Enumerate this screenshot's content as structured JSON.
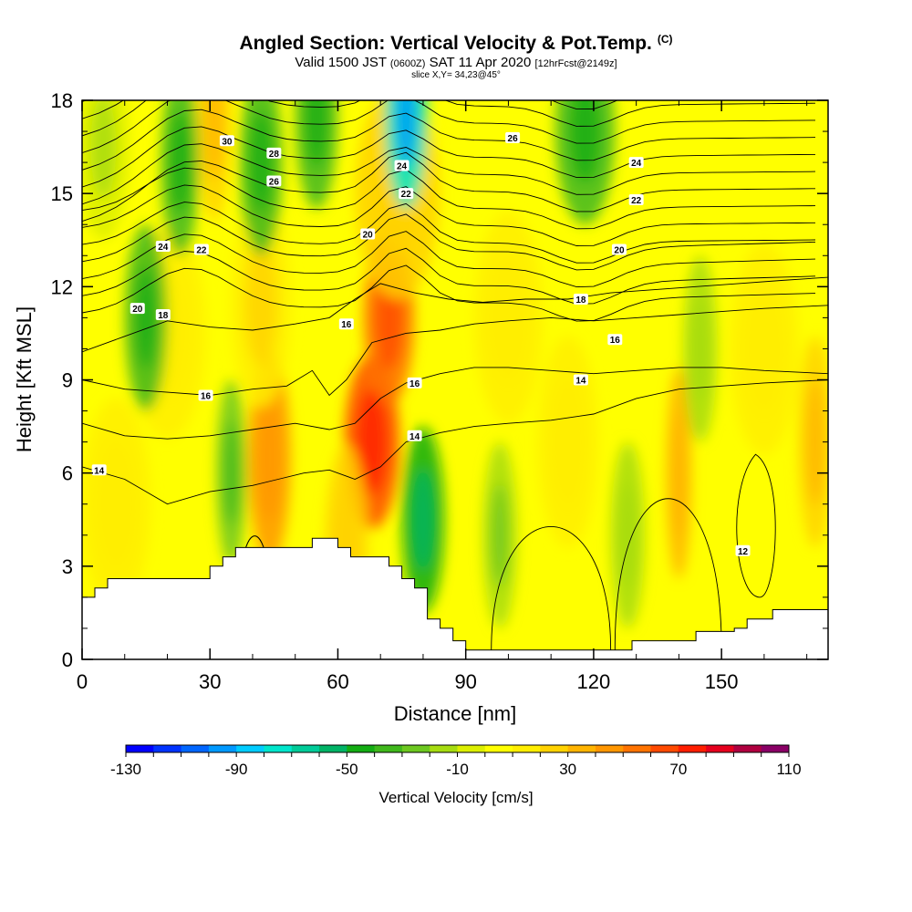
{
  "header": {
    "title": "Angled Section: Vertical Velocity & Pot.Temp.",
    "title_mark": "(C)",
    "valid_prefix": "Valid 1500 JST",
    "valid_utc": "(0600Z)",
    "valid_date": "SAT 11 Apr 2020",
    "forecast": "[12hrFcst@2149z]",
    "slice": "slice X,Y= 34,23@45°"
  },
  "chart_data": {
    "type": "heatmap",
    "xlabel": "Distance [nm]",
    "ylabel": "Height [Kft MSL]",
    "xlim": [
      0,
      175
    ],
    "ylim": [
      0,
      18
    ],
    "x_ticks": [
      "0",
      "30",
      "60",
      "90",
      "120",
      "150"
    ],
    "y_ticks": [
      "0",
      "3",
      "6",
      "9",
      "12",
      "15",
      "18"
    ],
    "colorbar": {
      "label": "Vertical Velocity [cm/s]",
      "min": -130,
      "max": 110,
      "step": 10,
      "tick_labels": [
        "-130",
        "-90",
        "-50",
        "-10",
        "30",
        "70",
        "110"
      ],
      "colors": [
        "#0000ff",
        "#0033ff",
        "#0066ff",
        "#0099ff",
        "#00ccff",
        "#00e6cc",
        "#00cc99",
        "#00b366",
        "#13ad13",
        "#40b81c",
        "#6dc820",
        "#a6dc10",
        "#dcef00",
        "#ffff00",
        "#ffee00",
        "#ffd200",
        "#ffb400",
        "#ff9600",
        "#ff7300",
        "#ff4a00",
        "#ff1e00",
        "#e6001e",
        "#b00040",
        "#8a0066"
      ]
    },
    "terrain_kft": [
      [
        0,
        2.0
      ],
      [
        3,
        2.3
      ],
      [
        6,
        2.6
      ],
      [
        9,
        2.6
      ],
      [
        12,
        2.6
      ],
      [
        15,
        2.6
      ],
      [
        18,
        2.6
      ],
      [
        21,
        2.6
      ],
      [
        24,
        2.6
      ],
      [
        27,
        2.6
      ],
      [
        30,
        3.0
      ],
      [
        33,
        3.3
      ],
      [
        36,
        3.6
      ],
      [
        39,
        3.6
      ],
      [
        42,
        3.6
      ],
      [
        45,
        3.6
      ],
      [
        48,
        3.6
      ],
      [
        51,
        3.6
      ],
      [
        54,
        3.9
      ],
      [
        57,
        3.9
      ],
      [
        60,
        3.6
      ],
      [
        63,
        3.3
      ],
      [
        66,
        3.3
      ],
      [
        69,
        3.3
      ],
      [
        72,
        3.0
      ],
      [
        75,
        2.6
      ],
      [
        78,
        2.3
      ],
      [
        81,
        1.3
      ],
      [
        84,
        1.0
      ],
      [
        87,
        0.6
      ],
      [
        90,
        0.3
      ],
      [
        93,
        0.3
      ],
      [
        96,
        0.3
      ],
      [
        99,
        0.3
      ],
      [
        102,
        0.3
      ],
      [
        105,
        0.3
      ],
      [
        108,
        0.3
      ],
      [
        111,
        0.3
      ],
      [
        114,
        0.3
      ],
      [
        117,
        0.3
      ],
      [
        120,
        0.3
      ],
      [
        123,
        0.3
      ],
      [
        126,
        0.3
      ],
      [
        129,
        0.6
      ],
      [
        132,
        0.6
      ],
      [
        135,
        0.6
      ],
      [
        138,
        0.6
      ],
      [
        141,
        0.6
      ],
      [
        144,
        0.9
      ],
      [
        147,
        0.9
      ],
      [
        150,
        0.9
      ],
      [
        153,
        1.0
      ],
      [
        156,
        1.3
      ],
      [
        159,
        1.3
      ],
      [
        162,
        1.6
      ],
      [
        165,
        1.6
      ],
      [
        168,
        1.6
      ],
      [
        171,
        1.6
      ],
      [
        175,
        1.6
      ]
    ],
    "updraft_cells": [
      {
        "x": 68,
        "h": 7.0,
        "w": 6.5,
        "v": 65
      },
      {
        "x": 72,
        "h": 11.0,
        "w": 6.0,
        "v": 50
      },
      {
        "x": 44,
        "h": 6.5,
        "w": 5.0,
        "v": 40
      },
      {
        "x": 74,
        "h": 15.0,
        "w": 10.0,
        "v": 20
      },
      {
        "x": 42,
        "h": 11.5,
        "w": 7.0,
        "v": 18
      },
      {
        "x": 62,
        "h": 3.5,
        "w": 5.0,
        "v": 20
      },
      {
        "x": 31,
        "h": 17.5,
        "w": 4.0,
        "v": 25
      },
      {
        "x": 20,
        "h": 10.5,
        "w": 9.0,
        "v": 15
      },
      {
        "x": 140,
        "h": 6.0,
        "w": 3.0,
        "v": 30
      },
      {
        "x": 172,
        "h": 7.0,
        "w": 4.0,
        "v": 25
      },
      {
        "x": 100,
        "h": 11.0,
        "w": 8.0,
        "v": 10
      },
      {
        "x": 8,
        "h": 5.0,
        "w": 8.0,
        "v": 10
      },
      {
        "x": 160,
        "h": 10.0,
        "w": 8.0,
        "v": 12
      },
      {
        "x": 114,
        "h": 7.0,
        "w": 7.0,
        "v": 12
      }
    ],
    "downdraft_cells": [
      {
        "x": 80,
        "h": 4.5,
        "w": 5.0,
        "v": -45
      },
      {
        "x": 76,
        "h": 17.5,
        "w": 5.0,
        "v": -80
      },
      {
        "x": 23,
        "h": 16.0,
        "w": 4.5,
        "v": -40
      },
      {
        "x": 15,
        "h": 11.0,
        "w": 5.0,
        "v": -35
      },
      {
        "x": 55,
        "h": 17.5,
        "w": 5.0,
        "v": -40
      },
      {
        "x": 42,
        "h": 16.0,
        "w": 5.0,
        "v": -35
      },
      {
        "x": 118,
        "h": 17.0,
        "w": 7.0,
        "v": -40
      },
      {
        "x": 35,
        "h": 6.0,
        "w": 3.5,
        "v": -30
      },
      {
        "x": 98,
        "h": 4.0,
        "w": 4.0,
        "v": -18
      },
      {
        "x": 128,
        "h": 4.0,
        "w": 4.0,
        "v": -16
      },
      {
        "x": 145,
        "h": 10.0,
        "w": 4.0,
        "v": -15
      },
      {
        "x": 5,
        "h": 16.5,
        "w": 6.0,
        "v": -10
      }
    ],
    "theta_contours_c": [
      12,
      14,
      16,
      18,
      20,
      22,
      24,
      26,
      28,
      30
    ],
    "theta_contour_labels": [
      {
        "text": "14",
        "x": 4,
        "h": 6.1
      },
      {
        "text": "12",
        "x": 155,
        "h": 3.5
      },
      {
        "text": "14",
        "x": 78,
        "h": 7.2
      },
      {
        "text": "14",
        "x": 117,
        "h": 9.0
      },
      {
        "text": "16",
        "x": 29,
        "h": 8.5
      },
      {
        "text": "16",
        "x": 78,
        "h": 8.9
      },
      {
        "text": "16",
        "x": 125,
        "h": 10.3
      },
      {
        "text": "18",
        "x": 19,
        "h": 11.1
      },
      {
        "text": "16",
        "x": 62,
        "h": 10.8
      },
      {
        "text": "18",
        "x": 117,
        "h": 11.6
      },
      {
        "text": "20",
        "x": 13,
        "h": 11.3
      },
      {
        "text": "20",
        "x": 67,
        "h": 13.7
      },
      {
        "text": "20",
        "x": 126,
        "h": 13.2
      },
      {
        "text": "22",
        "x": 28,
        "h": 13.2
      },
      {
        "text": "22",
        "x": 76,
        "h": 15.0
      },
      {
        "text": "22",
        "x": 130,
        "h": 14.8
      },
      {
        "text": "24",
        "x": 19,
        "h": 13.3
      },
      {
        "text": "24",
        "x": 75,
        "h": 15.9
      },
      {
        "text": "24",
        "x": 130,
        "h": 16.0
      },
      {
        "text": "26",
        "x": 45,
        "h": 15.4
      },
      {
        "text": "26",
        "x": 101,
        "h": 16.8
      },
      {
        "text": "28",
        "x": 45,
        "h": 16.3
      },
      {
        "text": "30",
        "x": 34,
        "h": 16.7
      }
    ]
  }
}
